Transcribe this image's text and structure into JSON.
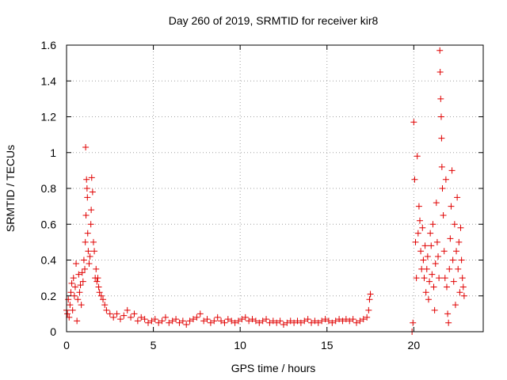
{
  "chart_data": {
    "type": "scatter",
    "title": "Day 260 of 2019, SRMTID for receiver kir8",
    "xlabel": "GPS time / hours",
    "ylabel": "SRMTID / TECUs",
    "xlim": [
      0,
      24
    ],
    "ylim": [
      0,
      1.6
    ],
    "x_ticks": [
      0,
      5,
      10,
      15,
      20
    ],
    "x_tick_labels": [
      "0",
      "5",
      "10",
      "15",
      "20"
    ],
    "y_ticks": [
      0,
      0.2,
      0.4,
      0.6,
      0.8,
      1,
      1.2,
      1.4,
      1.6
    ],
    "y_tick_labels": [
      "0",
      "0.2",
      "0.4",
      "0.6",
      "0.8",
      "1",
      "1.2",
      "1.4",
      "1.6"
    ],
    "grid": true,
    "marker": "+",
    "series": [
      {
        "name": "SRMTID",
        "color": "#e00000",
        "points": [
          [
            0.0,
            0.12
          ],
          [
            0.05,
            0.1
          ],
          [
            0.1,
            0.18
          ],
          [
            0.15,
            0.08
          ],
          [
            0.2,
            0.15
          ],
          [
            0.25,
            0.22
          ],
          [
            0.3,
            0.27
          ],
          [
            0.35,
            0.12
          ],
          [
            0.4,
            0.3
          ],
          [
            0.45,
            0.2
          ],
          [
            0.5,
            0.25
          ],
          [
            0.55,
            0.38
          ],
          [
            0.6,
            0.06
          ],
          [
            0.65,
            0.18
          ],
          [
            0.7,
            0.32
          ],
          [
            0.75,
            0.22
          ],
          [
            0.8,
            0.26
          ],
          [
            0.85,
            0.15
          ],
          [
            0.9,
            0.33
          ],
          [
            0.95,
            0.28
          ],
          [
            1.0,
            0.4
          ],
          [
            1.05,
            0.35
          ],
          [
            1.08,
            0.5
          ],
          [
            1.1,
            1.03
          ],
          [
            1.12,
            0.65
          ],
          [
            1.15,
            0.85
          ],
          [
            1.18,
            0.8
          ],
          [
            1.2,
            0.75
          ],
          [
            1.22,
            0.55
          ],
          [
            1.25,
            0.45
          ],
          [
            1.3,
            0.38
          ],
          [
            1.35,
            0.42
          ],
          [
            1.4,
            0.6
          ],
          [
            1.42,
            0.68
          ],
          [
            1.45,
            0.86
          ],
          [
            1.5,
            0.78
          ],
          [
            1.55,
            0.5
          ],
          [
            1.6,
            0.45
          ],
          [
            1.65,
            0.3
          ],
          [
            1.7,
            0.35
          ],
          [
            1.75,
            0.28
          ],
          [
            1.8,
            0.3
          ],
          [
            1.85,
            0.25
          ],
          [
            1.9,
            0.22
          ],
          [
            2.0,
            0.2
          ],
          [
            2.1,
            0.18
          ],
          [
            2.2,
            0.15
          ],
          [
            2.3,
            0.12
          ],
          [
            2.5,
            0.1
          ],
          [
            2.7,
            0.08
          ],
          [
            2.9,
            0.1
          ],
          [
            3.1,
            0.07
          ],
          [
            3.3,
            0.09
          ],
          [
            3.5,
            0.12
          ],
          [
            3.7,
            0.08
          ],
          [
            3.9,
            0.1
          ],
          [
            4.1,
            0.06
          ],
          [
            4.3,
            0.08
          ],
          [
            4.5,
            0.07
          ],
          [
            4.7,
            0.05
          ],
          [
            4.9,
            0.06
          ],
          [
            5.1,
            0.07
          ],
          [
            5.3,
            0.05
          ],
          [
            5.5,
            0.06
          ],
          [
            5.7,
            0.08
          ],
          [
            5.9,
            0.05
          ],
          [
            6.1,
            0.06
          ],
          [
            6.3,
            0.07
          ],
          [
            6.5,
            0.05
          ],
          [
            6.7,
            0.06
          ],
          [
            6.9,
            0.04
          ],
          [
            7.1,
            0.06
          ],
          [
            7.3,
            0.07
          ],
          [
            7.5,
            0.08
          ],
          [
            7.7,
            0.1
          ],
          [
            7.9,
            0.06
          ],
          [
            8.1,
            0.07
          ],
          [
            8.3,
            0.05
          ],
          [
            8.5,
            0.06
          ],
          [
            8.7,
            0.08
          ],
          [
            8.9,
            0.06
          ],
          [
            9.1,
            0.05
          ],
          [
            9.3,
            0.07
          ],
          [
            9.5,
            0.06
          ],
          [
            9.7,
            0.05
          ],
          [
            9.9,
            0.06
          ],
          [
            10.1,
            0.07
          ],
          [
            10.3,
            0.08
          ],
          [
            10.5,
            0.06
          ],
          [
            10.7,
            0.07
          ],
          [
            10.9,
            0.06
          ],
          [
            11.1,
            0.05
          ],
          [
            11.3,
            0.06
          ],
          [
            11.5,
            0.07
          ],
          [
            11.7,
            0.05
          ],
          [
            11.9,
            0.06
          ],
          [
            12.1,
            0.05
          ],
          [
            12.3,
            0.06
          ],
          [
            12.5,
            0.04
          ],
          [
            12.7,
            0.05
          ],
          [
            12.9,
            0.06
          ],
          [
            13.1,
            0.05
          ],
          [
            13.3,
            0.06
          ],
          [
            13.5,
            0.05
          ],
          [
            13.7,
            0.06
          ],
          [
            13.9,
            0.07
          ],
          [
            14.1,
            0.05
          ],
          [
            14.3,
            0.06
          ],
          [
            14.5,
            0.05
          ],
          [
            14.7,
            0.06
          ],
          [
            14.9,
            0.07
          ],
          [
            15.1,
            0.06
          ],
          [
            15.3,
            0.05
          ],
          [
            15.5,
            0.06
          ],
          [
            15.7,
            0.07
          ],
          [
            15.9,
            0.06
          ],
          [
            16.1,
            0.07
          ],
          [
            16.3,
            0.06
          ],
          [
            16.5,
            0.07
          ],
          [
            16.7,
            0.05
          ],
          [
            16.9,
            0.06
          ],
          [
            17.1,
            0.07
          ],
          [
            17.3,
            0.08
          ],
          [
            17.4,
            0.12
          ],
          [
            17.45,
            0.18
          ],
          [
            17.5,
            0.21
          ],
          [
            19.9,
            0.0
          ],
          [
            19.95,
            0.05
          ],
          [
            20.0,
            1.17
          ],
          [
            20.05,
            0.85
          ],
          [
            20.1,
            0.5
          ],
          [
            20.15,
            0.3
          ],
          [
            20.2,
            0.98
          ],
          [
            20.25,
            0.55
          ],
          [
            20.3,
            0.7
          ],
          [
            20.35,
            0.62
          ],
          [
            20.4,
            0.45
          ],
          [
            20.45,
            0.35
          ],
          [
            20.5,
            0.58
          ],
          [
            20.55,
            0.4
          ],
          [
            20.6,
            0.3
          ],
          [
            20.65,
            0.48
          ],
          [
            20.7,
            0.22
          ],
          [
            20.75,
            0.35
          ],
          [
            20.8,
            0.42
          ],
          [
            20.85,
            0.18
          ],
          [
            20.9,
            0.28
          ],
          [
            20.95,
            0.55
          ],
          [
            21.0,
            0.48
          ],
          [
            21.05,
            0.32
          ],
          [
            21.1,
            0.6
          ],
          [
            21.15,
            0.25
          ],
          [
            21.2,
            0.12
          ],
          [
            21.25,
            0.38
          ],
          [
            21.3,
            0.72
          ],
          [
            21.35,
            0.5
          ],
          [
            21.4,
            0.42
          ],
          [
            21.45,
            0.3
          ],
          [
            21.5,
            1.57
          ],
          [
            21.52,
            1.45
          ],
          [
            21.55,
            1.3
          ],
          [
            21.58,
            1.2
          ],
          [
            21.6,
            1.08
          ],
          [
            21.62,
            0.92
          ],
          [
            21.65,
            0.8
          ],
          [
            21.7,
            0.65
          ],
          [
            21.75,
            0.45
          ],
          [
            21.8,
            0.3
          ],
          [
            21.85,
            0.85
          ],
          [
            21.9,
            0.25
          ],
          [
            21.95,
            0.1
          ],
          [
            22.0,
            0.05
          ],
          [
            22.05,
            0.35
          ],
          [
            22.1,
            0.52
          ],
          [
            22.15,
            0.7
          ],
          [
            22.2,
            0.9
          ],
          [
            22.25,
            0.4
          ],
          [
            22.3,
            0.28
          ],
          [
            22.35,
            0.6
          ],
          [
            22.4,
            0.15
          ],
          [
            22.45,
            0.45
          ],
          [
            22.5,
            0.75
          ],
          [
            22.55,
            0.35
          ],
          [
            22.6,
            0.5
          ],
          [
            22.65,
            0.22
          ],
          [
            22.7,
            0.58
          ],
          [
            22.75,
            0.4
          ],
          [
            22.8,
            0.3
          ],
          [
            22.85,
            0.25
          ],
          [
            22.9,
            0.2
          ]
        ]
      }
    ]
  }
}
